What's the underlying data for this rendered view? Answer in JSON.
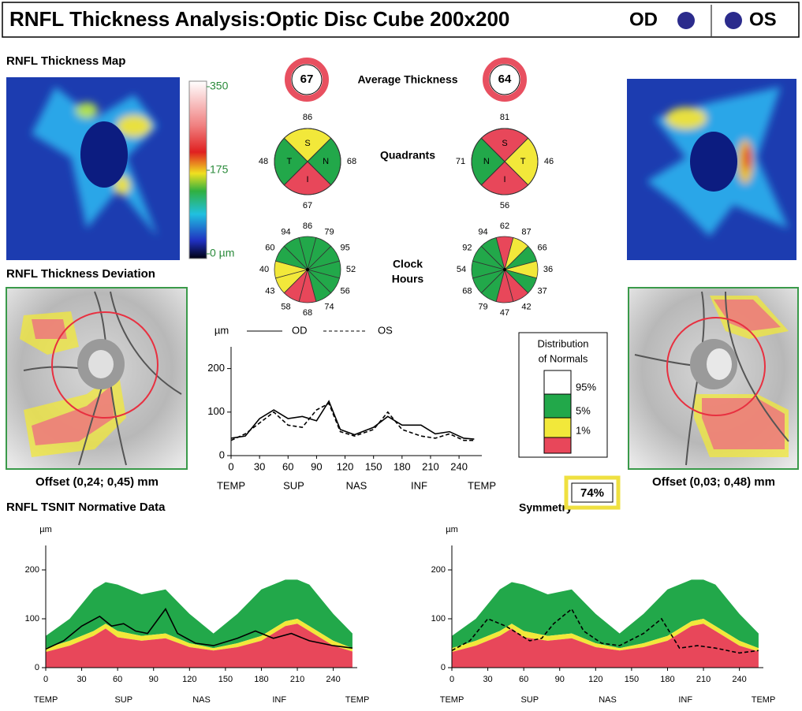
{
  "header": {
    "title": "RNFL Thickness Analysis:Optic Disc Cube 200x200",
    "od": "OD",
    "os": "OS"
  },
  "left": {
    "map_title": "RNFL Thickness Map",
    "deviation_title": "RNFL Thickness Deviation",
    "offset": "Offset (0,24; 0,45) mm"
  },
  "right": {
    "offset": "Offset (0,03; 0,48) mm"
  },
  "colorbar": {
    "range": [
      0,
      350
    ],
    "ticks": [
      350,
      175,
      {
        "value": 0,
        "label": "0 µm"
      }
    ]
  },
  "average_thickness": {
    "label": "Average Thickness",
    "od": 67,
    "os": 64
  },
  "quadrants": {
    "label": "Quadrants",
    "od": {
      "names": [
        "S",
        "N",
        "I",
        "T"
      ],
      "values": [
        86,
        68,
        67,
        48
      ],
      "colors": [
        "#f2e83a",
        "#22a84a",
        "#e8475a",
        "#22a84a"
      ]
    },
    "os": {
      "names": [
        "S",
        "T",
        "I",
        "N"
      ],
      "values": [
        81,
        46,
        56,
        71
      ],
      "colors": [
        "#e8475a",
        "#f2e83a",
        "#e8475a",
        "#22a84a"
      ]
    }
  },
  "clock_hours": {
    "label_lines": [
      "Clock",
      "Hours"
    ],
    "od": {
      "values": [
        86,
        79,
        95,
        52,
        56,
        74,
        68,
        58,
        43,
        40,
        60,
        94
      ],
      "colors": [
        "#22a84a",
        "#22a84a",
        "#22a84a",
        "#22a84a",
        "#22a84a",
        "#22a84a",
        "#e8475a",
        "#e8475a",
        "#f2e83a",
        "#f2e83a",
        "#22a84a",
        "#22a84a"
      ]
    },
    "os": {
      "values": [
        62,
        87,
        66,
        36,
        37,
        42,
        47,
        79,
        68,
        54,
        92,
        94
      ],
      "colors": [
        "#e8475a",
        "#f2e83a",
        "#22a84a",
        "#f2e83a",
        "#22a84a",
        "#e8475a",
        "#e8475a",
        "#22a84a",
        "#22a84a",
        "#22a84a",
        "#22a84a",
        "#22a84a"
      ]
    }
  },
  "distribution": {
    "title_lines": [
      "Distribution",
      "of Normals"
    ],
    "levels": [
      "95%",
      "5%",
      "1%"
    ],
    "colors": [
      "#ffffff",
      "#22a84a",
      "#f2e83a",
      "#e8475a"
    ]
  },
  "symmetry": {
    "label": "Symmetry",
    "value": "74%"
  },
  "tsnit_title": "RNFL TSNIT Normative Data",
  "chart_data": [
    {
      "type": "line",
      "y_label": "µm",
      "xlim": [
        0,
        264
      ],
      "ylim": [
        0,
        250
      ],
      "xticks": [
        0,
        30,
        60,
        90,
        120,
        150,
        180,
        210,
        240
      ],
      "yticks": [
        0,
        100,
        200
      ],
      "region_labels": [
        "TEMP",
        "SUP",
        "NAS",
        "INF",
        "TEMP"
      ],
      "series": [
        {
          "name": "OD",
          "color": "#000000",
          "dashed": false,
          "x": [
            0,
            15,
            30,
            45,
            60,
            75,
            90,
            103,
            115,
            130,
            150,
            165,
            180,
            200,
            215,
            230,
            245,
            256
          ],
          "values": [
            40,
            45,
            85,
            105,
            85,
            90,
            80,
            125,
            60,
            48,
            65,
            90,
            70,
            70,
            50,
            55,
            40,
            38
          ]
        },
        {
          "name": "OS",
          "color": "#000000",
          "dashed": true,
          "x": [
            0,
            15,
            30,
            45,
            60,
            75,
            90,
            103,
            115,
            130,
            150,
            165,
            180,
            200,
            215,
            230,
            245,
            256
          ],
          "values": [
            35,
            50,
            75,
            100,
            70,
            65,
            105,
            120,
            55,
            45,
            60,
            100,
            60,
            45,
            40,
            50,
            35,
            35
          ]
        }
      ]
    },
    {
      "type": "normative",
      "y_label": "µm",
      "xlim": [
        0,
        260
      ],
      "ylim": [
        0,
        250
      ],
      "xticks": [
        0,
        30,
        60,
        90,
        120,
        150,
        180,
        210,
        240
      ],
      "yticks": [
        0,
        100,
        200
      ],
      "region_labels": [
        "TEMP",
        "SUP",
        "NAS",
        "INF",
        "TEMP"
      ],
      "bands": {
        "x": [
          0,
          20,
          40,
          50,
          60,
          80,
          100,
          120,
          140,
          160,
          180,
          200,
          210,
          220,
          240,
          256
        ],
        "p1": [
          32,
          45,
          65,
          80,
          62,
          55,
          60,
          42,
          35,
          42,
          55,
          85,
          90,
          75,
          45,
          33
        ],
        "p5": [
          40,
          55,
          75,
          90,
          75,
          65,
          70,
          50,
          40,
          50,
          65,
          95,
          100,
          85,
          55,
          40
        ],
        "p95": [
          65,
          100,
          160,
          175,
          170,
          150,
          160,
          110,
          70,
          110,
          160,
          180,
          180,
          170,
          110,
          70
        ]
      },
      "series": [
        {
          "color": "#000000",
          "dashed": false,
          "x": [
            0,
            15,
            30,
            45,
            55,
            65,
            75,
            85,
            100,
            110,
            125,
            140,
            160,
            175,
            190,
            205,
            220,
            240,
            256
          ],
          "values": [
            38,
            55,
            85,
            105,
            85,
            90,
            75,
            70,
            120,
            70,
            50,
            45,
            60,
            75,
            60,
            70,
            55,
            45,
            40
          ]
        }
      ]
    },
    {
      "type": "normative",
      "y_label": "µm",
      "xlim": [
        0,
        260
      ],
      "ylim": [
        0,
        250
      ],
      "xticks": [
        0,
        30,
        60,
        90,
        120,
        150,
        180,
        210,
        240
      ],
      "yticks": [
        0,
        100,
        200
      ],
      "region_labels": [
        "TEMP",
        "SUP",
        "NAS",
        "INF",
        "TEMP"
      ],
      "bands": {
        "x": [
          0,
          20,
          40,
          50,
          60,
          80,
          100,
          120,
          140,
          160,
          180,
          200,
          210,
          220,
          240,
          256
        ],
        "p1": [
          32,
          45,
          65,
          80,
          62,
          55,
          60,
          42,
          35,
          42,
          55,
          85,
          90,
          75,
          45,
          33
        ],
        "p5": [
          40,
          55,
          75,
          90,
          75,
          65,
          70,
          50,
          40,
          50,
          65,
          95,
          100,
          85,
          55,
          40
        ],
        "p95": [
          65,
          100,
          160,
          175,
          170,
          150,
          160,
          110,
          70,
          110,
          160,
          180,
          180,
          170,
          110,
          70
        ]
      },
      "series": [
        {
          "color": "#000000",
          "dashed": true,
          "x": [
            0,
            15,
            30,
            45,
            55,
            65,
            75,
            85,
            100,
            110,
            125,
            140,
            160,
            175,
            190,
            205,
            220,
            240,
            256
          ],
          "values": [
            35,
            55,
            100,
            85,
            70,
            55,
            60,
            90,
            120,
            75,
            50,
            45,
            70,
            100,
            40,
            45,
            40,
            30,
            35
          ]
        }
      ]
    }
  ]
}
